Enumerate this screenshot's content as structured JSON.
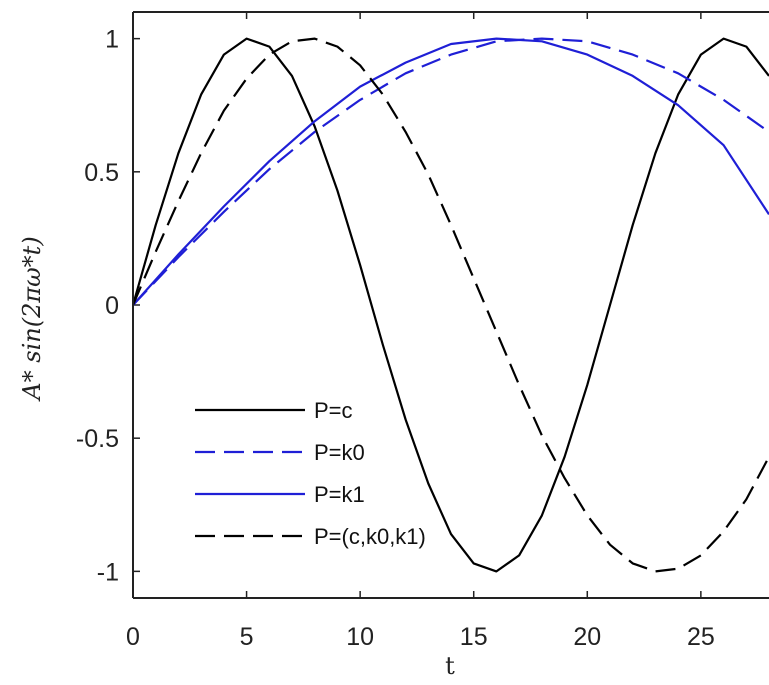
{
  "chart_data": {
    "type": "line",
    "xlabel": "t",
    "ylabel": "A* sin(2πω*t)",
    "xlim": [
      0,
      28
    ],
    "ylim": [
      -1.1,
      1.1
    ],
    "x_ticks": [
      0,
      5,
      10,
      15,
      20,
      25
    ],
    "x_tick_labels": [
      "0",
      "5",
      "10",
      "15",
      "20",
      "25"
    ],
    "y_ticks": [
      -1,
      -0.5,
      0,
      0.5,
      1
    ],
    "y_tick_labels": [
      "-1",
      "-0.5",
      "0",
      "0.5",
      "1"
    ],
    "grid": false,
    "legend_position": "lower-left",
    "series": [
      {
        "name": "P=c",
        "color": "#000000",
        "dash": "solid",
        "x": [
          0,
          1,
          2,
          3,
          4,
          5,
          6,
          7,
          8,
          9,
          10,
          11,
          12,
          13,
          14,
          15,
          16,
          17,
          18,
          19,
          20,
          21,
          22,
          23,
          24,
          25,
          26,
          27,
          28
        ],
        "y": [
          0,
          0.3,
          0.57,
          0.79,
          0.94,
          1.0,
          0.97,
          0.86,
          0.67,
          0.43,
          0.15,
          -0.15,
          -0.43,
          -0.67,
          -0.86,
          -0.97,
          -1.0,
          -0.94,
          -0.79,
          -0.57,
          -0.3,
          0.0,
          0.3,
          0.57,
          0.79,
          0.94,
          1.0,
          0.97,
          0.86
        ]
      },
      {
        "name": "P=k0",
        "color": "#1f1fd6",
        "dash": "dashed",
        "x": [
          0,
          2,
          4,
          6,
          8,
          10,
          12,
          14,
          16,
          18,
          20,
          22,
          24,
          26,
          28
        ],
        "y": [
          0,
          0.18,
          0.35,
          0.51,
          0.65,
          0.77,
          0.87,
          0.94,
          0.99,
          1.0,
          0.99,
          0.94,
          0.87,
          0.77,
          0.65
        ]
      },
      {
        "name": "P=k1",
        "color": "#1f1fd6",
        "dash": "solid",
        "x": [
          0,
          2,
          4,
          6,
          8,
          10,
          12,
          14,
          16,
          18,
          20,
          22,
          24,
          26,
          28
        ],
        "y": [
          0,
          0.19,
          0.37,
          0.54,
          0.69,
          0.82,
          0.91,
          0.98,
          1.0,
          0.99,
          0.94,
          0.86,
          0.75,
          0.6,
          0.34
        ]
      },
      {
        "name": "P=(c,k0,k1)",
        "color": "#000000",
        "dash": "dashed",
        "x": [
          0,
          1,
          2,
          3,
          4,
          5,
          6,
          7,
          8,
          9,
          10,
          11,
          12,
          13,
          14,
          15,
          16,
          17,
          18,
          19,
          20,
          21,
          22,
          23,
          24,
          25,
          26,
          27,
          28
        ],
        "y": [
          0,
          0.2,
          0.39,
          0.57,
          0.73,
          0.85,
          0.94,
          0.99,
          1.0,
          0.97,
          0.9,
          0.79,
          0.65,
          0.49,
          0.3,
          0.1,
          -0.1,
          -0.3,
          -0.49,
          -0.65,
          -0.79,
          -0.9,
          -0.97,
          -1.0,
          -0.99,
          -0.94,
          -0.85,
          -0.73,
          -0.57
        ]
      }
    ]
  }
}
